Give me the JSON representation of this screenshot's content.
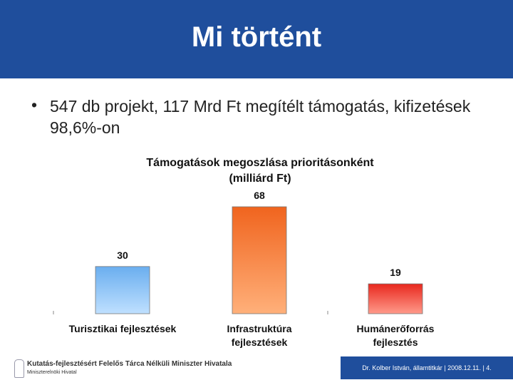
{
  "title": "Mi történt",
  "bullets": [
    "547 db projekt, 117 Mrd Ft megítélt támogatás, kifizetések 98,6%-on"
  ],
  "chart_data": {
    "type": "bar",
    "title": "Támogatások megoszlása prioritásonként",
    "subtitle": "(milliárd Ft)",
    "categories": [
      "Turisztikai fejlesztések",
      "Infrastruktúra\nfejlesztések",
      "Humánerőforrás\nfejlesztés"
    ],
    "values": [
      30,
      68,
      19
    ],
    "colors": [
      [
        "#bfe0ff",
        "#6aaeef"
      ],
      [
        "#ffb07a",
        "#f0641e"
      ],
      [
        "#ff9a8a",
        "#e8281e"
      ]
    ]
  },
  "footer": {
    "organization": "Kutatás-fejlesztésért Felelős Tárca Nélküli Miniszter Hivatala",
    "suborganization": "Miniszterelnöki Hivatal",
    "author_date_page": "Dr. Kolber István, államtitkár | 2008.12.11. | 4."
  }
}
